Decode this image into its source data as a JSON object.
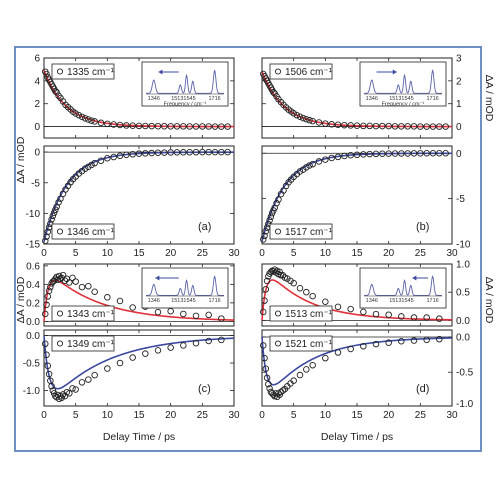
{
  "colors": {
    "frame_border": "#6f8fc2",
    "fit_red": "#e0303a",
    "fit_blue": "#3a48a0",
    "marker": "#222222",
    "inset_spectrum": "#5a62a8"
  },
  "axis_labels": {
    "left_top": "ΔA / mOD",
    "right_top": "ΔA / mOD",
    "left_bottom": "ΔA / mOD",
    "right_bottom": "ΔA / mOD",
    "x_left": "Delay Time / ps",
    "x_right": "Delay Time / ps"
  },
  "inset": {
    "xlabel": "Frequency / cm⁻¹",
    "peak_labels": [
      "1346",
      "1513",
      "1545",
      "1716"
    ]
  },
  "chart_data": [
    {
      "id": "p1",
      "type": "scatter",
      "legend": "1335 cm⁻¹",
      "fit_color": "red",
      "xlim": [
        0,
        30
      ],
      "ylim": [
        -1,
        6
      ],
      "yticks": [
        0,
        2,
        4,
        6
      ],
      "axis_side": "left",
      "x": [
        0.2,
        0.4,
        0.6,
        0.8,
        1.0,
        1.2,
        1.4,
        1.6,
        1.8,
        2.0,
        2.3,
        2.6,
        3.0,
        3.4,
        3.8,
        4.2,
        4.6,
        5.0,
        5.5,
        6.0,
        6.5,
        7.0,
        7.5,
        8.0,
        9.0,
        10,
        11,
        12,
        13,
        14,
        15,
        16,
        17,
        18,
        19,
        20,
        21,
        22,
        23,
        24,
        25,
        26,
        27,
        28,
        29
      ],
      "y": [
        4.8,
        4.6,
        4.3,
        4.1,
        3.9,
        3.7,
        3.5,
        3.3,
        3.1,
        3.0,
        2.7,
        2.5,
        2.2,
        1.9,
        1.7,
        1.5,
        1.3,
        1.15,
        1.0,
        0.85,
        0.72,
        0.62,
        0.52,
        0.45,
        0.33,
        0.24,
        0.18,
        0.14,
        0.1,
        0.08,
        0.06,
        0.05,
        0.04,
        0.03,
        0.03,
        0.02,
        0.02,
        0.02,
        0.01,
        0.01,
        0.01,
        0.01,
        0.0,
        0.0,
        0.0
      ],
      "fit": {
        "model": "exp_decay",
        "amplitude": 4.9,
        "tau": 3.5,
        "offset": 0
      }
    },
    {
      "id": "p2",
      "type": "scatter",
      "legend": "1346 cm⁻¹",
      "panel_label": "(a)",
      "fit_color": "blue",
      "xlim": [
        0,
        30
      ],
      "ylim": [
        -15,
        1
      ],
      "yticks": [
        -15,
        -10,
        -5,
        0
      ],
      "xticks": [
        0,
        5,
        10,
        15,
        20,
        25,
        30
      ],
      "axis_side": "left",
      "x": [
        0.2,
        0.4,
        0.6,
        0.8,
        1.0,
        1.2,
        1.4,
        1.6,
        1.8,
        2.0,
        2.3,
        2.6,
        3.0,
        3.4,
        3.8,
        4.2,
        4.6,
        5.0,
        5.5,
        6.0,
        6.5,
        7.0,
        7.5,
        8.0,
        9.0,
        10,
        11,
        12,
        13,
        14,
        15,
        16,
        17,
        18,
        19,
        20,
        21,
        22,
        23,
        24,
        25,
        26,
        27,
        28,
        29
      ],
      "y": [
        -14.5,
        -13.8,
        -13.0,
        -12.3,
        -11.7,
        -11.0,
        -10.4,
        -9.9,
        -9.4,
        -8.9,
        -8.2,
        -7.6,
        -6.8,
        -6.1,
        -5.5,
        -4.9,
        -4.4,
        -4.0,
        -3.5,
        -3.1,
        -2.7,
        -2.4,
        -2.1,
        -1.8,
        -1.4,
        -1.0,
        -0.8,
        -0.6,
        -0.45,
        -0.35,
        -0.25,
        -0.2,
        -0.15,
        -0.1,
        -0.08,
        -0.05,
        -0.04,
        -0.03,
        -0.02,
        -0.01,
        0.0,
        0.0,
        0.0,
        0.0,
        0.0
      ],
      "fit": {
        "model": "exp_decay",
        "amplitude": -14.6,
        "tau": 3.6,
        "offset": 0
      }
    },
    {
      "id": "p3",
      "type": "scatter",
      "legend": "1506 cm⁻¹",
      "fit_color": "red",
      "xlim": [
        0,
        30
      ],
      "ylim": [
        -0.5,
        3
      ],
      "yticks": [
        0,
        1,
        2,
        3
      ],
      "axis_side": "right",
      "x": [
        0.2,
        0.4,
        0.6,
        0.8,
        1.0,
        1.2,
        1.4,
        1.6,
        1.8,
        2.0,
        2.3,
        2.6,
        3.0,
        3.4,
        3.8,
        4.2,
        4.6,
        5.0,
        5.5,
        6.0,
        6.5,
        7.0,
        7.5,
        8.0,
        9.0,
        10,
        11,
        12,
        13,
        14,
        15,
        16,
        17,
        18,
        19,
        20,
        21,
        22,
        23,
        24,
        25,
        26,
        27,
        28,
        29
      ],
      "y": [
        2.3,
        2.2,
        2.1,
        2.0,
        1.9,
        1.8,
        1.7,
        1.6,
        1.5,
        1.45,
        1.32,
        1.2,
        1.07,
        0.95,
        0.84,
        0.74,
        0.66,
        0.58,
        0.5,
        0.43,
        0.37,
        0.32,
        0.28,
        0.24,
        0.18,
        0.13,
        0.1,
        0.08,
        0.06,
        0.05,
        0.04,
        0.03,
        0.03,
        0.02,
        0.02,
        0.02,
        0.01,
        0.01,
        0.01,
        0.01,
        0.0,
        0.0,
        0.0,
        0.0,
        0.0
      ],
      "fit": {
        "model": "exp_decay",
        "amplitude": 2.4,
        "tau": 3.5,
        "offset": 0
      }
    },
    {
      "id": "p4",
      "type": "scatter",
      "legend": "1517 cm⁻¹",
      "panel_label": "(b)",
      "fit_color": "blue",
      "xlim": [
        0,
        30
      ],
      "ylim": [
        -10,
        0.8
      ],
      "yticks": [
        -10,
        -5,
        0
      ],
      "xticks": [
        0,
        5,
        10,
        15,
        20,
        25,
        30
      ],
      "axis_side": "right",
      "x": [
        0.2,
        0.4,
        0.6,
        0.8,
        1.0,
        1.2,
        1.4,
        1.6,
        1.8,
        2.0,
        2.3,
        2.6,
        3.0,
        3.4,
        3.8,
        4.2,
        4.6,
        5.0,
        5.5,
        6.0,
        6.5,
        7.0,
        7.5,
        8.0,
        9.0,
        10,
        11,
        12,
        13,
        14,
        15,
        16,
        17,
        18,
        19,
        20,
        21,
        22,
        23,
        24,
        25,
        26,
        27,
        28,
        29
      ],
      "y": [
        -9.5,
        -9.1,
        -8.6,
        -8.2,
        -7.8,
        -7.4,
        -7.0,
        -6.6,
        -6.3,
        -6.0,
        -5.5,
        -5.1,
        -4.5,
        -4.1,
        -3.6,
        -3.2,
        -2.9,
        -2.6,
        -2.3,
        -2.0,
        -1.8,
        -1.55,
        -1.35,
        -1.2,
        -0.9,
        -0.7,
        -0.52,
        -0.4,
        -0.3,
        -0.22,
        -0.17,
        -0.12,
        -0.09,
        -0.07,
        -0.05,
        -0.04,
        -0.03,
        -0.02,
        -0.02,
        -0.01,
        -0.01,
        0.0,
        0.0,
        0.0,
        0.0
      ],
      "fit": {
        "model": "exp_decay",
        "amplitude": -9.7,
        "tau": 3.6,
        "offset": 0
      }
    },
    {
      "id": "p5",
      "type": "scatter",
      "legend": "1343 cm⁻¹",
      "fit_color": "red",
      "xlim": [
        0,
        30
      ],
      "ylim": [
        -0.05,
        0.62
      ],
      "yticks": [
        0.0,
        0.2,
        0.4,
        0.6
      ],
      "axis_side": "left",
      "x": [
        0.2,
        0.4,
        0.6,
        0.8,
        1.0,
        1.2,
        1.4,
        1.6,
        1.8,
        2.0,
        2.2,
        2.4,
        2.6,
        2.8,
        3.0,
        3.3,
        3.6,
        4.0,
        4.5,
        5.0,
        6.0,
        7.0,
        8.0,
        10,
        12,
        14,
        16,
        18,
        20,
        22,
        24,
        26,
        28
      ],
      "y": [
        0.08,
        0.18,
        0.27,
        0.33,
        0.37,
        0.41,
        0.43,
        0.44,
        0.46,
        0.48,
        0.45,
        0.49,
        0.46,
        0.47,
        0.5,
        0.44,
        0.46,
        0.42,
        0.47,
        0.43,
        0.37,
        0.38,
        0.32,
        0.26,
        0.22,
        0.15,
        0.16,
        0.1,
        0.11,
        0.08,
        0.06,
        0.07,
        0.03
      ],
      "fit": {
        "model": "rise_decay",
        "amplitude": 0.6,
        "tau_rise": 0.7,
        "tau_decay": 8.0,
        "offset": 0
      }
    },
    {
      "id": "p6",
      "type": "scatter",
      "legend": "1349 cm⁻¹",
      "panel_label": "(c)",
      "fit_color": "blue",
      "xlim": [
        0,
        30
      ],
      "ylim": [
        -1.28,
        0.1
      ],
      "yticks": [
        -1.0,
        -0.5,
        0.0
      ],
      "xticks": [
        0,
        5,
        10,
        15,
        20,
        25,
        30
      ],
      "axis_side": "left",
      "x": [
        0.2,
        0.4,
        0.6,
        0.8,
        1.0,
        1.2,
        1.4,
        1.6,
        1.8,
        2.0,
        2.2,
        2.4,
        2.6,
        2.8,
        3.0,
        3.3,
        3.6,
        4.0,
        4.5,
        5.0,
        6.0,
        7.0,
        8.0,
        10,
        12,
        14,
        16,
        18,
        20,
        22,
        24,
        26,
        28
      ],
      "y": [
        -0.15,
        -0.35,
        -0.55,
        -0.7,
        -0.82,
        -0.92,
        -1.0,
        -1.05,
        -1.1,
        -1.12,
        -1.08,
        -1.15,
        -1.1,
        -1.13,
        -1.07,
        -1.1,
        -1.03,
        -1.05,
        -0.96,
        -0.98,
        -0.85,
        -0.8,
        -0.72,
        -0.6,
        -0.5,
        -0.4,
        -0.33,
        -0.27,
        -0.22,
        -0.18,
        -0.14,
        -0.1,
        -0.08
      ],
      "fit": {
        "model": "rise_decay",
        "amplitude": -1.35,
        "tau_rise": 0.9,
        "tau_decay": 9.0,
        "offset": 0
      }
    },
    {
      "id": "p7",
      "type": "scatter",
      "legend": "1513 cm⁻¹",
      "fit_color": "red",
      "xlim": [
        0,
        30
      ],
      "ylim": [
        -0.1,
        1.0
      ],
      "yticks": [
        0.0,
        0.5,
        1.0
      ],
      "axis_side": "right",
      "x": [
        0.2,
        0.4,
        0.6,
        0.8,
        1.0,
        1.2,
        1.4,
        1.6,
        1.8,
        2.0,
        2.2,
        2.4,
        2.6,
        2.8,
        3.0,
        3.3,
        3.6,
        4.0,
        4.5,
        5.0,
        6.0,
        7.0,
        8.0,
        10,
        12,
        14,
        16,
        18,
        20,
        22,
        24,
        26,
        28
      ],
      "y": [
        0.15,
        0.35,
        0.55,
        0.7,
        0.78,
        0.83,
        0.86,
        0.88,
        0.87,
        0.9,
        0.85,
        0.88,
        0.82,
        0.86,
        0.8,
        0.8,
        0.76,
        0.74,
        0.7,
        0.66,
        0.57,
        0.5,
        0.43,
        0.33,
        0.24,
        0.2,
        0.15,
        0.11,
        0.1,
        0.07,
        0.05,
        0.05,
        0.03
      ],
      "fit": {
        "model": "rise_decay",
        "amplitude": 1.02,
        "tau_rise": 0.7,
        "tau_decay": 6.5,
        "offset": 0
      }
    },
    {
      "id": "p8",
      "type": "scatter",
      "legend": "1521 cm⁻¹",
      "panel_label": "(d)",
      "fit_color": "blue",
      "xlim": [
        0,
        30
      ],
      "ylim": [
        -0.98,
        0.1
      ],
      "yticks": [
        -0.5,
        0.0
      ],
      "extra_tick_label": "-1.0",
      "xticks": [
        0,
        5,
        10,
        15,
        20,
        25,
        30
      ],
      "axis_side": "right",
      "x": [
        0.2,
        0.4,
        0.6,
        0.8,
        1.0,
        1.2,
        1.4,
        1.6,
        1.8,
        2.0,
        2.2,
        2.4,
        2.6,
        2.8,
        3.0,
        3.3,
        3.6,
        4.0,
        4.5,
        5.0,
        6.0,
        7.0,
        8.0,
        10,
        12,
        14,
        16,
        18,
        20,
        22,
        24,
        26,
        28
      ],
      "y": [
        -0.12,
        -0.3,
        -0.45,
        -0.58,
        -0.67,
        -0.73,
        -0.78,
        -0.8,
        -0.82,
        -0.84,
        -0.8,
        -0.85,
        -0.8,
        -0.82,
        -0.78,
        -0.76,
        -0.74,
        -0.7,
        -0.66,
        -0.62,
        -0.54,
        -0.46,
        -0.4,
        -0.3,
        -0.22,
        -0.17,
        -0.13,
        -0.1,
        -0.08,
        -0.06,
        -0.05,
        -0.04,
        -0.03
      ],
      "fit": {
        "model": "rise_decay",
        "amplitude": -0.98,
        "tau_rise": 0.8,
        "tau_decay": 7.0,
        "offset": 0
      }
    }
  ]
}
